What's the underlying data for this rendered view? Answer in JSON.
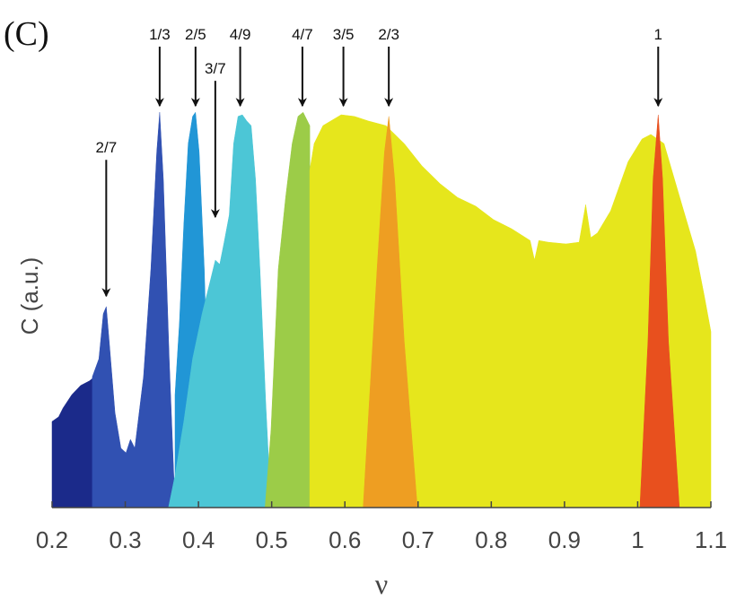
{
  "chart_data": {
    "type": "area",
    "title": "(C)",
    "x_label": "ν",
    "y_label": "C (a.u.)",
    "xlim": [
      0.2,
      1.1
    ],
    "xticks": [
      0.2,
      0.3,
      0.4,
      0.5,
      0.6,
      0.7,
      0.8,
      0.9,
      1,
      1.1
    ],
    "ylim": [
      0,
      1
    ],
    "series": [
      {
        "color": "#1b2a8a",
        "x": [
          0.2,
          0.2,
          0.209,
          0.215,
          0.227,
          0.239,
          0.251,
          0.258,
          0.258
        ],
        "values": [
          0,
          0.206,
          0.217,
          0.238,
          0.27,
          0.292,
          0.303,
          0.313,
          0
        ]
      },
      {
        "color": "#3151b2",
        "x": [
          0.255,
          0.255,
          0.264,
          0.27,
          0.274,
          0.278,
          0.286,
          0.294,
          0.301,
          0.307,
          0.313,
          0.325,
          0.335,
          0.343,
          0.347,
          0.352,
          0.36,
          0.368
        ],
        "values": [
          0,
          0.313,
          0.356,
          0.464,
          0.481,
          0.399,
          0.227,
          0.142,
          0.131,
          0.163,
          0.142,
          0.313,
          0.571,
          0.85,
          0.946,
          0.785,
          0.356,
          0
        ]
      },
      {
        "color": "#2196d6",
        "x": [
          0.368,
          0.368,
          0.374,
          0.38,
          0.386,
          0.392,
          0.396,
          0.401,
          0.408,
          0.417
        ],
        "values": [
          0,
          0.27,
          0.442,
          0.678,
          0.871,
          0.936,
          0.946,
          0.85,
          0.571,
          0
        ]
      },
      {
        "color": "#4cc6d6",
        "x": [
          0.359,
          0.368,
          0.38,
          0.392,
          0.405,
          0.417,
          0.423,
          0.429,
          0.435,
          0.442,
          0.448,
          0.454,
          0.46,
          0.466,
          0.472,
          0.478,
          0.484,
          0.492,
          0.499
        ],
        "values": [
          0,
          0.077,
          0.206,
          0.356,
          0.464,
          0.549,
          0.592,
          0.582,
          0.635,
          0.7,
          0.871,
          0.936,
          0.94,
          0.925,
          0.914,
          0.785,
          0.571,
          0.249,
          0
        ]
      },
      {
        "color": "#9ccc48",
        "x": [
          0.491,
          0.499,
          0.509,
          0.519,
          0.528,
          0.536,
          0.543,
          0.552,
          0.553
        ],
        "values": [
          0,
          0.185,
          0.571,
          0.742,
          0.871,
          0.936,
          0.946,
          0.914,
          0
        ]
      },
      {
        "color": "#e6e61c",
        "x": [
          0.552,
          0.552,
          0.558,
          0.57,
          0.595,
          0.613,
          0.632,
          0.656,
          0.681,
          0.705,
          0.73,
          0.754,
          0.779,
          0.803,
          0.828,
          0.853,
          0.859,
          0.865,
          0.878,
          0.902,
          0.92,
          0.929,
          0.936,
          0.945,
          0.963,
          0.987,
          1.006,
          1.018,
          1.036,
          1.061,
          1.079,
          1.091,
          1.1,
          1.1
        ],
        "values": [
          0,
          0.807,
          0.871,
          0.914,
          0.94,
          0.936,
          0.925,
          0.914,
          0.871,
          0.818,
          0.775,
          0.742,
          0.721,
          0.689,
          0.667,
          0.639,
          0.592,
          0.639,
          0.635,
          0.631,
          0.635,
          0.725,
          0.646,
          0.657,
          0.71,
          0.828,
          0.882,
          0.893,
          0.871,
          0.721,
          0.614,
          0.506,
          0.421,
          0
        ]
      },
      {
        "color": "#ee9e22",
        "x": [
          0.625,
          0.644,
          0.654,
          0.66,
          0.668,
          0.681,
          0.699
        ],
        "values": [
          0,
          0.571,
          0.85,
          0.936,
          0.785,
          0.399,
          0
        ]
      },
      {
        "color": "#e8501e",
        "x": [
          1.003,
          1.014,
          1.021,
          1.028,
          1.034,
          1.042,
          1.057
        ],
        "values": [
          0,
          0.399,
          0.785,
          0.94,
          0.785,
          0.399,
          0
        ]
      }
    ],
    "annotations": [
      {
        "text": "2/7",
        "x": 0.274,
        "y": 0.506
      },
      {
        "text": "1/3",
        "x": 0.347,
        "y": 0.961
      },
      {
        "text": "2/5",
        "x": 0.396,
        "y": 0.961
      },
      {
        "text": "3/7",
        "x": 0.423,
        "y": 0.695
      },
      {
        "text": "4/9",
        "x": 0.457,
        "y": 0.961
      },
      {
        "text": "4/7",
        "x": 0.542,
        "y": 0.961
      },
      {
        "text": "3/5",
        "x": 0.598,
        "y": 0.961
      },
      {
        "text": "2/3",
        "x": 0.66,
        "y": 0.961
      },
      {
        "text": "1",
        "x": 1.028,
        "y": 0.961
      }
    ]
  }
}
